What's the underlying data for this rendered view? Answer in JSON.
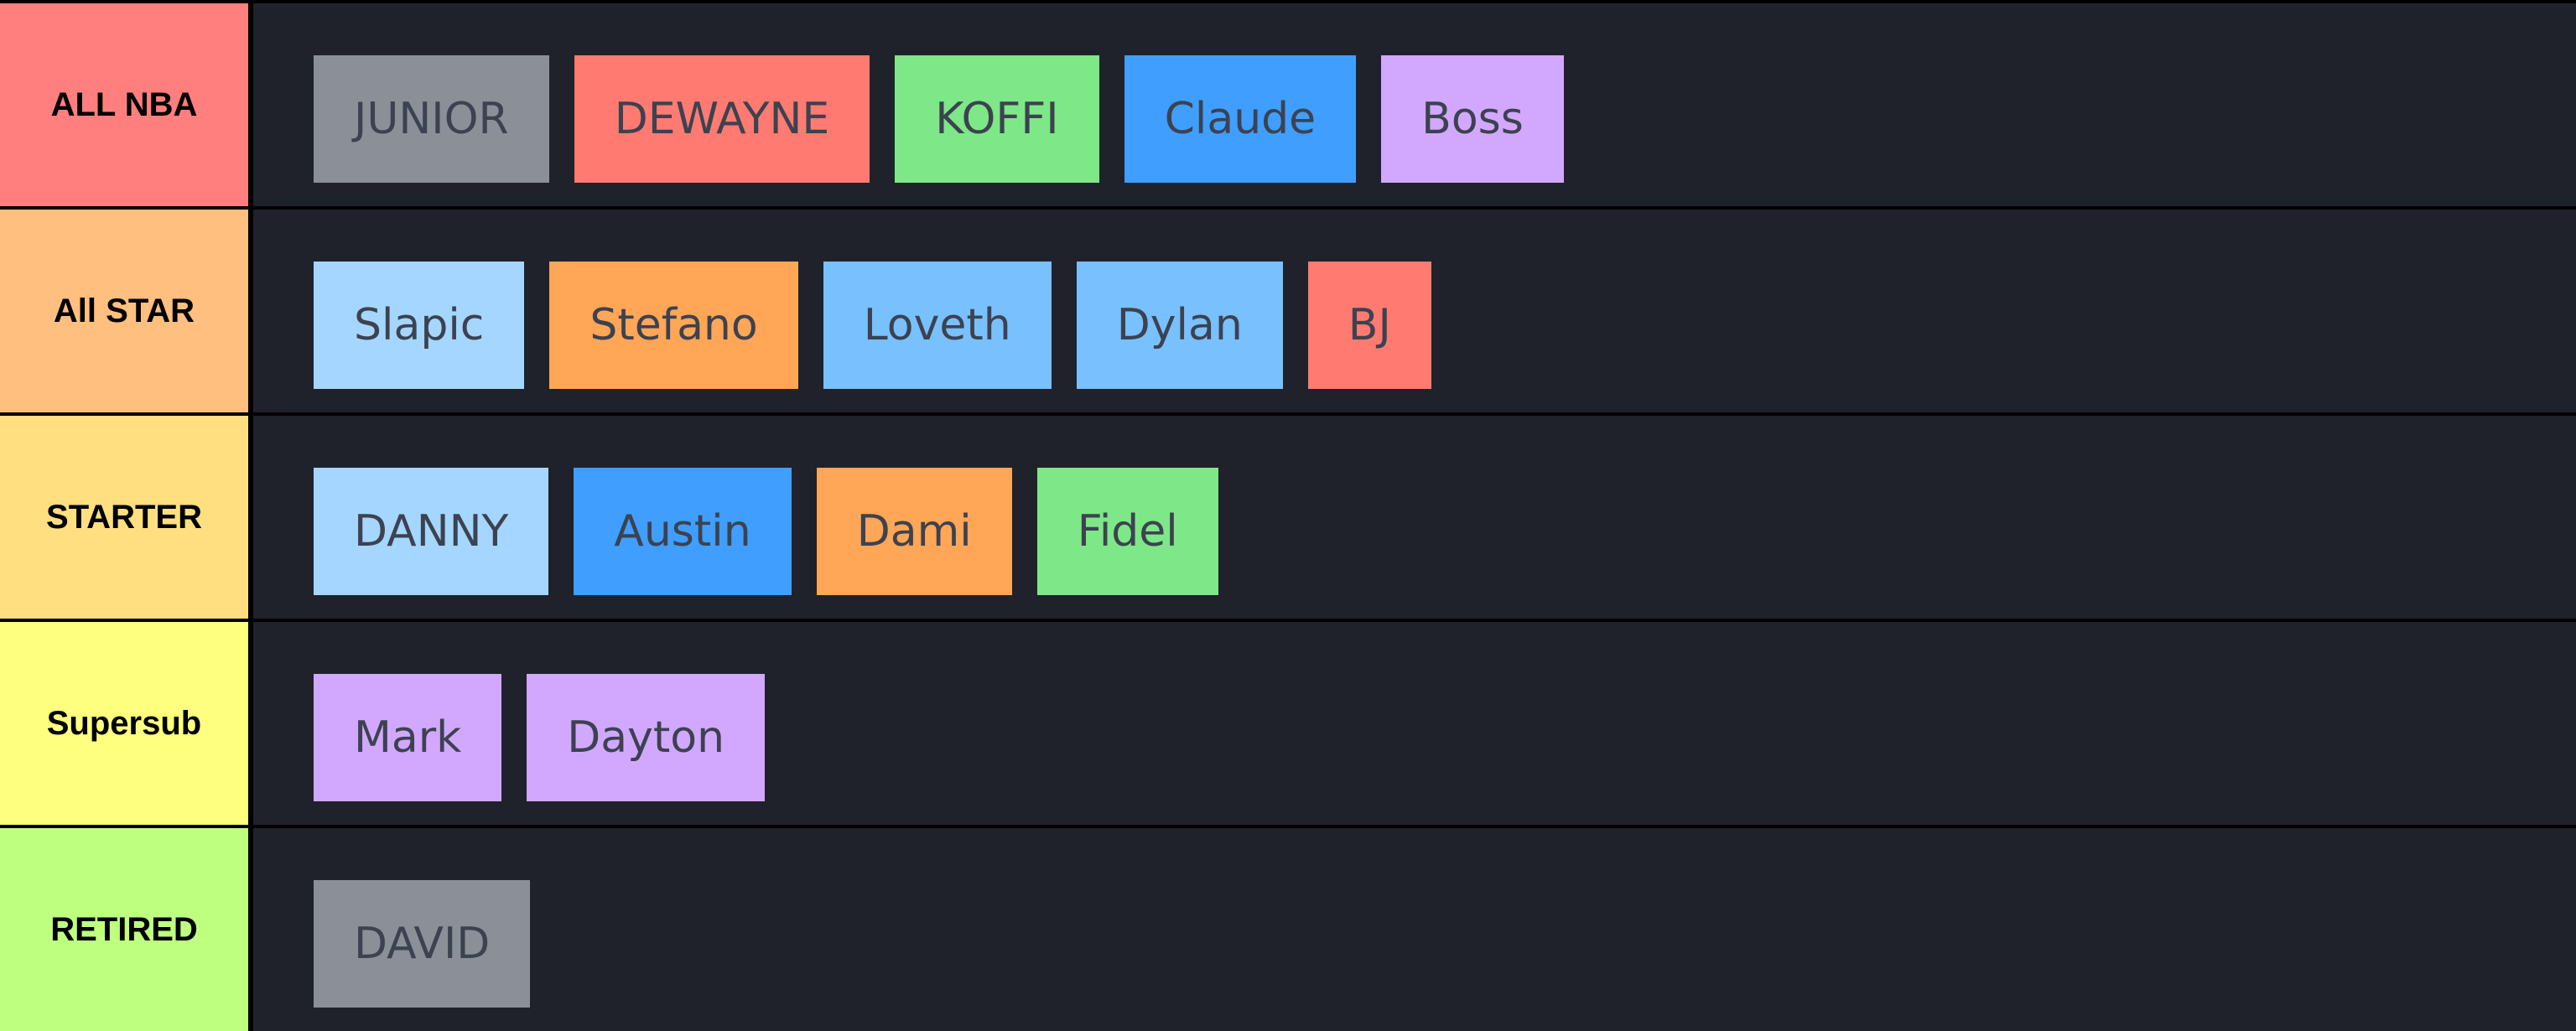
{
  "tiers": [
    {
      "label": "ALL NBA",
      "color": "#ff7f7e",
      "items": [
        {
          "name": "JUNIOR",
          "color": "#8b9098"
        },
        {
          "name": "DEWAYNE",
          "color": "#ff7b72"
        },
        {
          "name": "KOFFI",
          "color": "#7ee787"
        },
        {
          "name": "Claude",
          "color": "#409eff"
        },
        {
          "name": "Boss",
          "color": "#d2a8ff"
        }
      ]
    },
    {
      "label": "All STAR",
      "color": "#ffbf7f",
      "items": [
        {
          "name": "Slapic",
          "color": "#a5d6ff"
        },
        {
          "name": "Stefano",
          "color": "#ffa657"
        },
        {
          "name": "Loveth",
          "color": "#79c0ff"
        },
        {
          "name": "Dylan",
          "color": "#79c0ff"
        },
        {
          "name": "BJ",
          "color": "#ff7b72"
        }
      ]
    },
    {
      "label": "STARTER",
      "color": "#ffdf80",
      "items": [
        {
          "name": "DANNY",
          "color": "#a5d6ff"
        },
        {
          "name": "Austin",
          "color": "#409eff"
        },
        {
          "name": "Dami",
          "color": "#ffa657"
        },
        {
          "name": "Fidel",
          "color": "#7ee787"
        }
      ]
    },
    {
      "label": "Supersub",
      "color": "#ffff7f",
      "items": [
        {
          "name": "Mark",
          "color": "#d2a8ff"
        },
        {
          "name": "Dayton",
          "color": "#d2a8ff"
        }
      ]
    },
    {
      "label": "RETIRED",
      "color": "#bfff7f",
      "items": [
        {
          "name": "DAVID",
          "color": "#8b9098"
        }
      ]
    }
  ]
}
